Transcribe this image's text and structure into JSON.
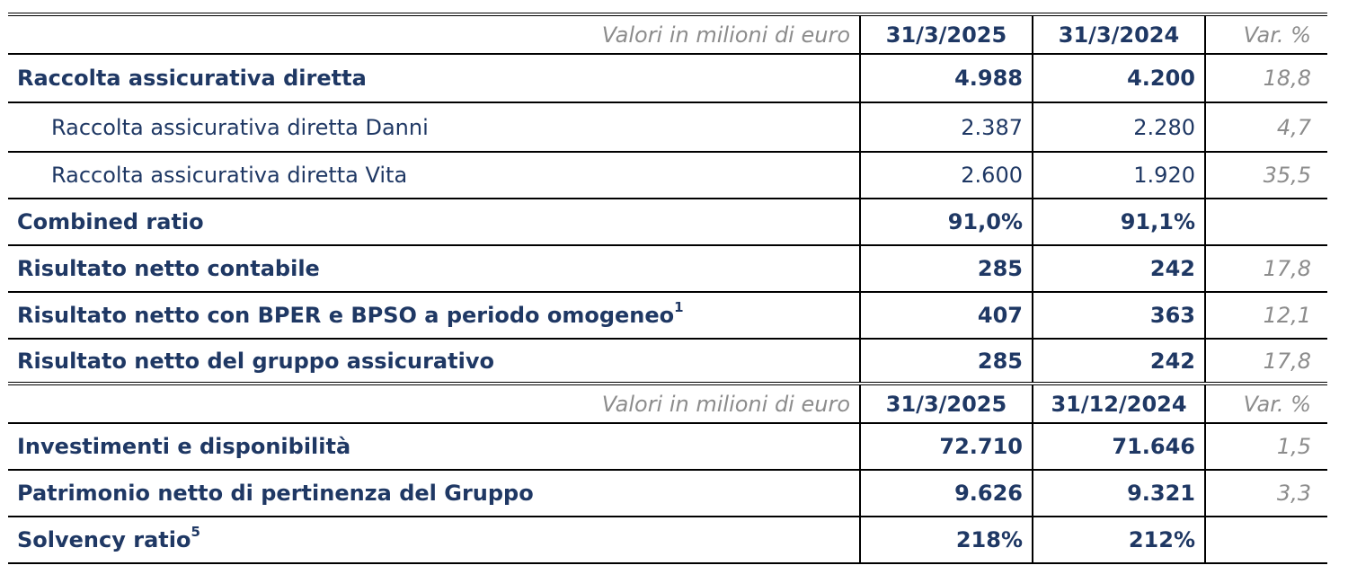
{
  "section1": {
    "header": {
      "unit_label": "Valori in milioni di euro",
      "col1": "31/3/2025",
      "col2": "31/3/2024",
      "col3": "Var. %"
    },
    "rows": [
      {
        "label": "Raccolta assicurativa diretta",
        "v1": "4.988",
        "v2": "4.200",
        "v3": "18,8"
      },
      {
        "label": "Raccolta assicurativa diretta Danni",
        "v1": "2.387",
        "v2": "2.280",
        "v3": "4,7"
      },
      {
        "label": "Raccolta assicurativa diretta Vita",
        "v1": "2.600",
        "v2": "1.920",
        "v3": "35,5"
      },
      {
        "label": "Combined ratio",
        "v1": "91,0%",
        "v2": "91,1%",
        "v3": ""
      },
      {
        "label": "Risultato netto contabile",
        "v1": "285",
        "v2": "242",
        "v3": "17,8"
      },
      {
        "label": "Risultato netto con BPER e BPSO a periodo omogeneo",
        "sup": "1",
        "v1": "407",
        "v2": "363",
        "v3": "12,1"
      },
      {
        "label": "Risultato netto del gruppo assicurativo",
        "v1": "285",
        "v2": "242",
        "v3": "17,8"
      }
    ]
  },
  "section2": {
    "header": {
      "unit_label": "Valori in milioni di euro",
      "col1": "31/3/2025",
      "col2": "31/12/2024",
      "col3": "Var. %"
    },
    "rows": [
      {
        "label": "Investimenti e disponibilità",
        "v1": "72.710",
        "v2": "71.646",
        "v3": "1,5"
      },
      {
        "label": "Patrimonio netto di pertinenza del Gruppo",
        "v1": "9.626",
        "v2": "9.321",
        "v3": "3,3"
      },
      {
        "label": "Solvency ratio",
        "sup": "5",
        "v1": "218%",
        "v2": "212%",
        "v3": ""
      }
    ]
  },
  "colors": {
    "text": "#1f3864",
    "muted": "#8c8c8c",
    "rule": "#000000"
  }
}
